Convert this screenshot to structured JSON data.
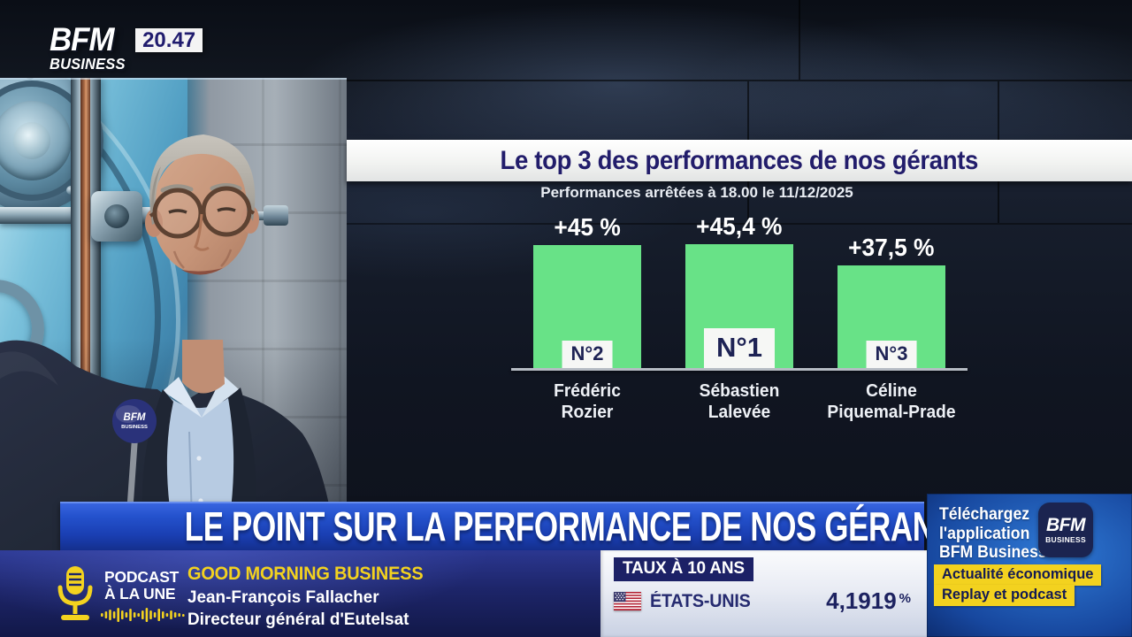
{
  "channel": {
    "logo_line1": "BFM",
    "logo_line2": "BUSINESS",
    "time": "20.47"
  },
  "chart_data": {
    "type": "bar",
    "title": "Le top 3 des performances de nos gérants",
    "subtitle": "Performances arrêtées à 18.00 le 11/12/2025",
    "unit": "%",
    "categories": [
      "Frédéric Rozier",
      "Sébastien Lalevée",
      "Céline Piquemal-Prade"
    ],
    "values": [
      45,
      45.4,
      37.5
    ],
    "ylim": [
      0,
      45.4
    ],
    "grid": false,
    "bars": [
      {
        "rank": "N°2",
        "rank_size": "small",
        "value": 45,
        "value_label": "+45 %",
        "name_line1": "Frédéric",
        "name_line2": "Rozier"
      },
      {
        "rank": "N°1",
        "rank_size": "large",
        "value": 45.4,
        "value_label": "+45,4 %",
        "name_line1": "Sébastien",
        "name_line2": "Lalevée"
      },
      {
        "rank": "N°3",
        "rank_size": "small",
        "value": 37.5,
        "value_label": "+37,5 %",
        "name_line1": "Céline",
        "name_line2": "Piquemal-Prade"
      }
    ]
  },
  "headline": "LE POINT SUR LA PERFORMANCE DE NOS GÉRANTS",
  "podcast": {
    "kicker_line1": "PODCAST",
    "kicker_line2": "À LA UNE",
    "show": "GOOD MORNING BUSINESS",
    "guest": "Jean-François Fallacher",
    "guest_title": "Directeur général d'Eutelsat"
  },
  "rates": {
    "label": "TAUX À 10 ANS",
    "country": "ÉTATS-UNIS",
    "value": "4,1919",
    "unit": "%"
  },
  "app_promo": {
    "line1": "Téléchargez",
    "line2": "l'application",
    "line3": "BFM Business",
    "app_icon_line1": "BFM",
    "app_icon_line2": "BUSINESS",
    "badge1": "Actualité économique",
    "badge2": "Replay et podcast"
  },
  "mic_flag": {
    "line1": "BFM",
    "line2": "BUSINESS"
  },
  "colors": {
    "bar_green": "#68e287",
    "accent_yellow": "#f3d21f",
    "headline_blue": "#1e4bc4",
    "navy_text": "#221d6b"
  }
}
